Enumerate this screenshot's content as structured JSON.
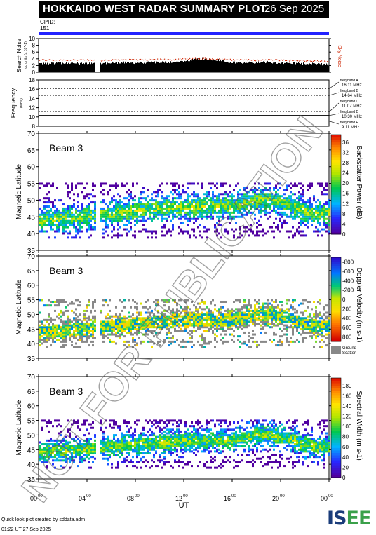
{
  "header": {
    "title": "HOKKAIDO WEST RADAR SUMMARY PLOT",
    "date": "26 Sep 2025",
    "cpid_label": "CPID:",
    "cpid_value": "151"
  },
  "colors": {
    "header_bg": "#000000",
    "cpid_bar": "#2222ff",
    "noise_red": "#d03010",
    "ground_scatter": "#888888"
  },
  "watermark": "NOT FOR PUBLICATION",
  "footer": {
    "created_by": "Quick look plot created by sddata.adm",
    "timestamp": "01:22 UT 27 Sep 2025"
  },
  "logo": {
    "text_a": "IS",
    "text_b": "EE"
  },
  "chart_data": [
    {
      "type": "area",
      "ylabel": "Search Noise",
      "ylabel_sub": "log units (x 10^-1)",
      "right_label": "Sky Noise",
      "ylim": [
        0,
        10
      ],
      "yticks": [
        0,
        2,
        4,
        6,
        8,
        10
      ],
      "series": [
        {
          "name": "Search Noise",
          "x": [
            0,
            1,
            2,
            3,
            4,
            5,
            6,
            7,
            8,
            9,
            10,
            11,
            12,
            13,
            14,
            15,
            16,
            17,
            18,
            19,
            20,
            21,
            22,
            23,
            24
          ],
          "values": [
            2.6,
            2.6,
            2.7,
            2.6,
            2.7,
            2.5,
            2.8,
            2.9,
            2.8,
            2.9,
            3.0,
            3.0,
            3.2,
            3.9,
            3.9,
            3.6,
            2.9,
            2.8,
            2.9,
            3.0,
            2.8,
            2.7,
            2.6,
            2.5,
            2.2
          ]
        },
        {
          "name": "Sky Noise",
          "x": [
            0,
            1,
            2,
            3,
            4,
            5,
            6,
            7,
            8,
            9,
            10,
            11,
            12,
            13,
            14,
            15,
            16,
            17,
            18,
            19,
            20,
            21,
            22,
            23,
            24
          ],
          "values": [
            3.7,
            3.8,
            3.7,
            3.8,
            3.7,
            3.6,
            3.8,
            3.9,
            3.8,
            3.8,
            3.9,
            3.9,
            4.0,
            4.1,
            4.1,
            4.0,
            3.8,
            3.8,
            3.7,
            3.8,
            3.7,
            3.6,
            3.5,
            3.4,
            3.2
          ]
        }
      ],
      "gaps": [
        [
          4.6,
          5.0
        ]
      ]
    },
    {
      "type": "line",
      "ylabel": "Frequency",
      "ylabel_sub": "(MHz)",
      "ylim": [
        8,
        18
      ],
      "yticks": [
        8,
        10,
        12,
        14,
        16,
        18
      ],
      "freq_bands": [
        {
          "label": "freq band A",
          "value": "16.11 MHz",
          "freq": 16.11
        },
        {
          "label": "freq band B",
          "value": "14.64 MHz",
          "freq": 14.64
        },
        {
          "label": "freq band C",
          "value": "11.07 MHz",
          "freq": 11.07
        },
        {
          "label": "freq band D",
          "value": "10.30 MHz",
          "freq": 10.3
        },
        {
          "label": "freq band E",
          "value": "9.11 MHz",
          "freq": 9.11
        }
      ],
      "series": [
        {
          "name": "Frequency",
          "x": [
            0,
            24
          ],
          "values": [
            10.3,
            10.3
          ]
        }
      ]
    },
    {
      "type": "heatmap",
      "beam": "Beam 3",
      "ylabel": "Magnetic Latitude",
      "ylim": [
        35,
        70
      ],
      "yticks": [
        35,
        40,
        45,
        50,
        55,
        60,
        65,
        70
      ],
      "colorbar": {
        "label": "Backscatter Power (dB)",
        "ticks": [
          0,
          4,
          8,
          12,
          16,
          20,
          24,
          28,
          32,
          36
        ],
        "range": [
          0,
          39
        ]
      },
      "gaps": [
        [
          4.6,
          5.0
        ]
      ]
    },
    {
      "type": "heatmap",
      "beam": "Beam 3",
      "ylabel": "Magnetic Latitude",
      "ylim": [
        35,
        70
      ],
      "yticks": [
        35,
        40,
        45,
        50,
        55,
        60,
        65,
        70
      ],
      "colorbar": {
        "label": "Doppler Velocity (m s-1)",
        "ticks": [
          800,
          600,
          400,
          200,
          0,
          -200,
          -400,
          -600,
          -800
        ],
        "range": [
          -900,
          900
        ]
      },
      "ground_scatter_label": [
        "Ground",
        "Scatter"
      ],
      "gaps": [
        [
          4.6,
          5.0
        ]
      ]
    },
    {
      "type": "heatmap",
      "beam": "Beam 3",
      "ylabel": "Magnetic Latitude",
      "ylim": [
        35,
        70
      ],
      "yticks": [
        35,
        40,
        45,
        50,
        55,
        60,
        65,
        70
      ],
      "colorbar": {
        "label": "Spectral Width (m s-1)",
        "ticks": [
          0,
          20,
          40,
          60,
          80,
          100,
          120,
          140,
          160,
          180
        ],
        "range": [
          0,
          195
        ]
      },
      "gaps": [
        [
          4.6,
          5.0
        ]
      ]
    }
  ],
  "xaxis": {
    "label": "UT",
    "ticks": [
      {
        "h": "00",
        "m": "00",
        "v": 0
      },
      {
        "h": "04",
        "m": "00",
        "v": 4
      },
      {
        "h": "08",
        "m": "00",
        "v": 8
      },
      {
        "h": "12",
        "m": "00",
        "v": 12
      },
      {
        "h": "16",
        "m": "00",
        "v": 16
      },
      {
        "h": "20",
        "m": "00",
        "v": 20
      },
      {
        "h": "00",
        "m": "00",
        "v": 24
      }
    ],
    "range": [
      0,
      24
    ]
  }
}
